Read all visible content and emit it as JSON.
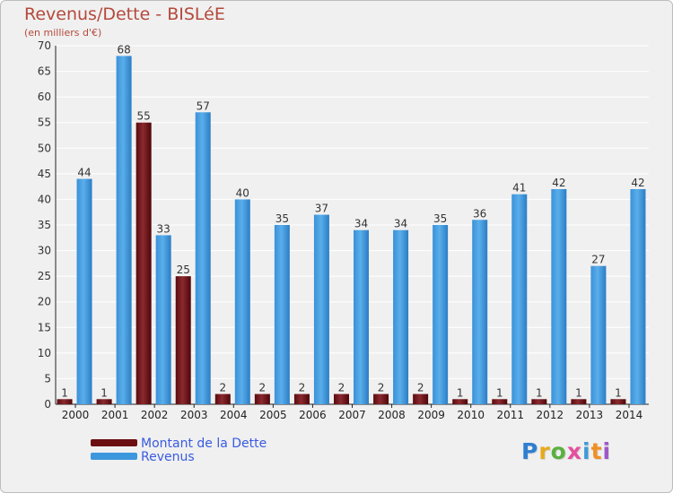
{
  "title": "Revenus/Dette - BISLéE",
  "subtitle": "(en milliers d'€)",
  "logo_text": "Proxiti",
  "logo_colors": [
    "#2f7fd1",
    "#e6a91b",
    "#5bb040",
    "#e44f9d",
    "#3f9ad8",
    "#f08f22",
    "#9c58c8"
  ],
  "colors": {
    "title": "#b4493b",
    "dette": "#6b0e12",
    "revenus": "#3d97dd",
    "frame": "#f0f0f0",
    "grid": "#ffffff"
  },
  "legend": [
    {
      "label": "Montant de la Dette",
      "color": "#6b0e12"
    },
    {
      "label": "Revenus",
      "color": "#3d97dd"
    }
  ],
  "chart_data": {
    "type": "bar",
    "categories": [
      "2000",
      "2001",
      "2002",
      "2003",
      "2004",
      "2005",
      "2006",
      "2007",
      "2008",
      "2009",
      "2010",
      "2011",
      "2012",
      "2013",
      "2014"
    ],
    "series": [
      {
        "name": "Montant de la Dette",
        "color": "#6b0e12",
        "values": [
          1,
          1,
          55,
          25,
          2,
          2,
          2,
          2,
          2,
          2,
          1,
          1,
          1,
          1,
          1
        ]
      },
      {
        "name": "Revenus",
        "color": "#3d97dd",
        "values": [
          44,
          68,
          33,
          57,
          40,
          35,
          37,
          34,
          34,
          35,
          36,
          41,
          42,
          27,
          42
        ]
      }
    ],
    "ylim": [
      0,
      70
    ],
    "yticks": [
      0,
      5,
      10,
      15,
      20,
      25,
      30,
      35,
      40,
      45,
      50,
      55,
      60,
      65,
      70
    ],
    "grid": true,
    "legend_position": "bottom-left",
    "data_labels": true
  }
}
